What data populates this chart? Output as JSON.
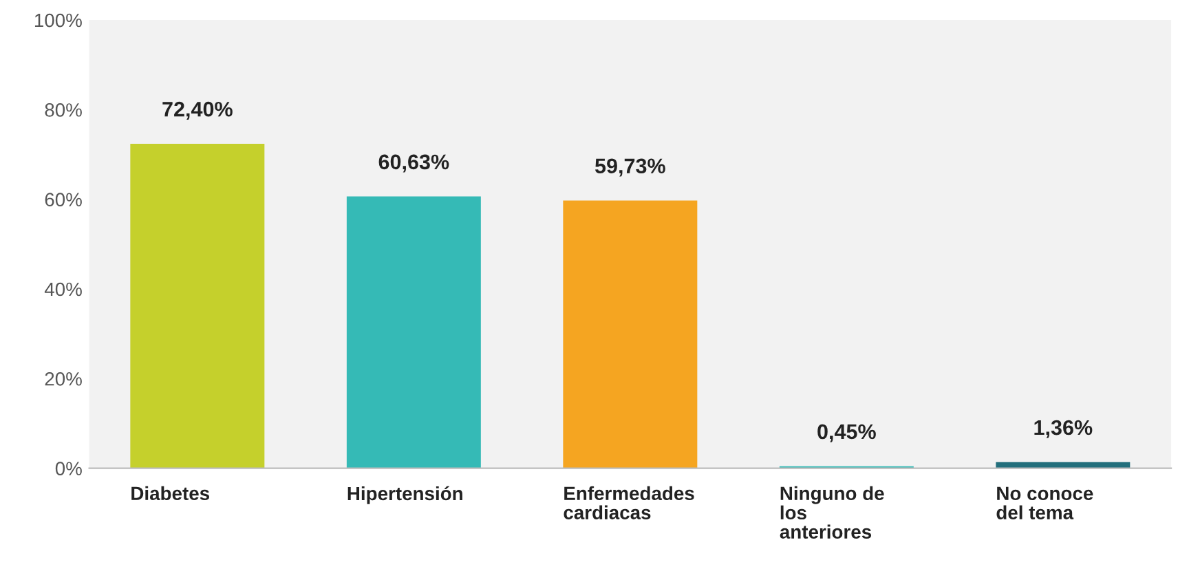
{
  "chart_data": {
    "type": "bar",
    "categories": [
      "Diabetes",
      "Hipertensión",
      "Enfermedades\ncardiacas",
      "Ninguno de\nlos\nanteriores",
      "No conoce\ndel tema"
    ],
    "values": [
      72.4,
      60.63,
      59.73,
      0.45,
      1.36
    ],
    "colors": [
      "#c5d02c",
      "#35bab6",
      "#f5a521",
      "#35bab6",
      "#236f7c"
    ],
    "value_labels": [
      "72,40%",
      "60,63%",
      "59,73%",
      "0,45%",
      "1,36%"
    ],
    "ylim": [
      0,
      100
    ],
    "yticks": [
      {
        "value": 0,
        "label": "0%"
      },
      {
        "value": 20,
        "label": "20%"
      },
      {
        "value": 40,
        "label": "40%"
      },
      {
        "value": 60,
        "label": "60%"
      },
      {
        "value": 80,
        "label": "80%"
      },
      {
        "value": 100,
        "label": "100%"
      }
    ]
  }
}
